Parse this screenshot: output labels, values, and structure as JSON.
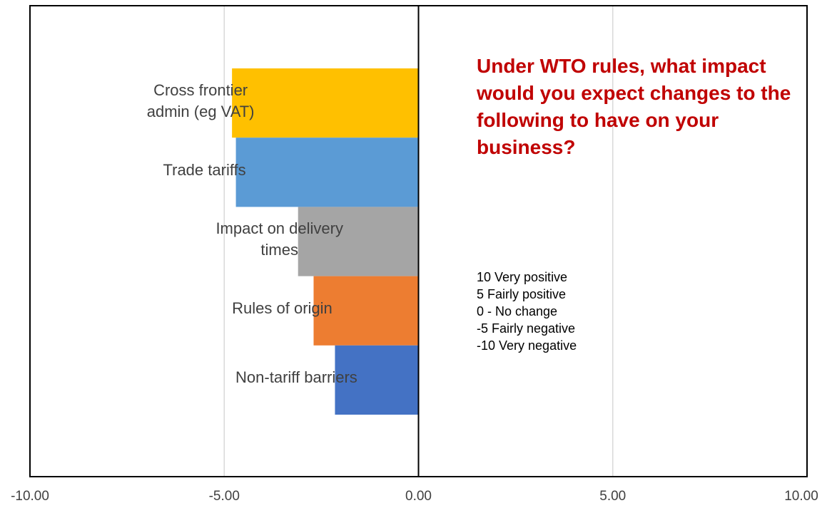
{
  "chart_data": {
    "type": "bar",
    "orientation": "horizontal",
    "categories": [
      "Cross frontier\nadmin (eg VAT)",
      "Trade tariffs",
      "Impact on delivery\ntimes",
      "Rules of origin",
      "Non-tariff barriers"
    ],
    "values": [
      -4.8,
      -4.7,
      -3.1,
      -2.7,
      -2.15
    ],
    "colors": [
      "#ffc000",
      "#5b9bd5",
      "#a5a5a5",
      "#ed7d31",
      "#4472c4"
    ],
    "xlim": [
      -10,
      10
    ],
    "x_ticks": [
      "-10.00",
      "-5.00",
      "0.00",
      "5.00",
      "10.00"
    ],
    "x_tick_values": [
      -10,
      -5,
      0,
      5,
      10
    ],
    "grid": true,
    "title": "Under WTO rules, what impact would you expect changes to the following to have on your business?",
    "title_color": "#c00000",
    "annotation": [
      "10 Very positive",
      "5 Fairly positive",
      "0 - No change",
      "-5 Fairly negative",
      "-10 Very negative"
    ]
  }
}
